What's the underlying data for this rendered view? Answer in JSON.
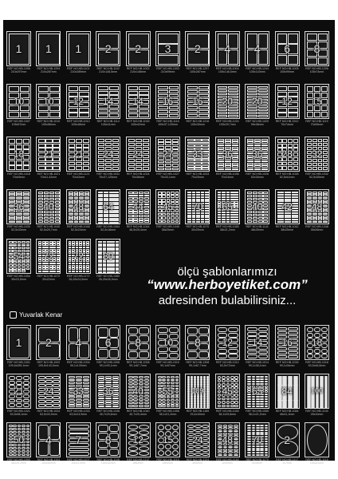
{
  "promo": {
    "line1": "ölçü şablonlarımızı",
    "line2": "“www.herboyetiket.com”",
    "line3": "adresinden bulabilirsiniz..."
  },
  "section_label": "Yuvarlak Kenar",
  "templates_square": [
    {
      "n": "1",
      "code": "REF NO:HB-1096",
      "size": "210x297mm"
    },
    {
      "n": "1",
      "code": "REF NO:HB-1294",
      "size": "210x287mm"
    },
    {
      "n": "1",
      "code": "REF NO:HB-1101",
      "size": "210x289mm"
    },
    {
      "n": "2",
      "code": "REF NO:HB-1102",
      "size": "210x148,5mm"
    },
    {
      "n": "2",
      "code": "REF NO:HB-1002",
      "size": "210x148mm"
    },
    {
      "n": "3",
      "code": "REF NO:HB-1003",
      "size": "210x99mm"
    },
    {
      "n": "2",
      "code": "REF NO:HB-1297",
      "size": "105x287mm"
    },
    {
      "n": "4",
      "code": "REF NO:HB-1004",
      "size": "105x148,5mm"
    },
    {
      "n": "4",
      "code": "REF NO:HB-1244",
      "size": "105x143mm"
    },
    {
      "n": "6",
      "code": "REF NO:HB-1005",
      "size": "105x99mm"
    },
    {
      "n": "8",
      "code": "REF NO:HB-1206",
      "size": "105x74mm"
    },
    {
      "n": "10",
      "code": "REF NO:HB-1007",
      "size": "105x57mm"
    },
    {
      "n": "10",
      "code": "REF NO:HB-1010",
      "size": "105x58mm"
    },
    {
      "n": "12",
      "code": "REF NO:HB-1012",
      "size": "105x48mm"
    },
    {
      "n": "14",
      "code": "REF NO:HB-1114",
      "size": "105x41mm"
    },
    {
      "n": "14",
      "code": "REF NO:HB-1015",
      "size": "105x42mm"
    },
    {
      "n": "16",
      "code": "REF NO:HB-1116",
      "size": "105x37,125mm"
    },
    {
      "n": "16",
      "code": "REF NO:HB-1216",
      "size": "105x35mm"
    },
    {
      "n": "20",
      "code": "REF NO:HB-1224",
      "size": "105x29,7mm"
    },
    {
      "n": "20",
      "code": "REF NO:HB-1020",
      "size": "99x38mm"
    },
    {
      "n": "12",
      "code": "REF NO:HB-1512",
      "size": "70x74mm"
    },
    {
      "n": "15",
      "code": "REF NO:HB-1119",
      "size": "70x59mm"
    },
    {
      "n": "18",
      "code": "REF NO:HB-1018",
      "size": "70x49mm"
    },
    {
      "n": "21",
      "code": "REF NO:HB-1021",
      "size": "70x41,42mm"
    },
    {
      "n": "21",
      "code": "REF NO:HB-1121",
      "size": "70x42mm"
    },
    {
      "n": "24",
      "code": "REF NO:HB-1031",
      "size": "70x37,125mm"
    },
    {
      "n": "24",
      "code": "REF NO:HB-1024",
      "size": "70x36mm"
    },
    {
      "n": "27",
      "code": "REF NO:HB-1027",
      "size": "70x33,1mm"
    },
    {
      "n": "33",
      "code": "REF NO:HB-1033",
      "size": "70x25mm"
    },
    {
      "n": "36",
      "code": "REF NO:HB-1036",
      "size": "70x24mm"
    },
    {
      "n": "36",
      "code": "REF NO:HB-1026",
      "size": "52x34mm"
    },
    {
      "n": "28",
      "code": "REF NO:HB-1028",
      "size": "52,5x41mm"
    },
    {
      "n": "32",
      "code": "REF NO:HB-1032",
      "size": "52,5x35mm"
    },
    {
      "n": "36",
      "code": "REF NO:HB-1030",
      "size": "52,5x33mm"
    },
    {
      "n": "40",
      "code": "REF NO:HB-1040",
      "size": "52,5x29,7mm"
    },
    {
      "n": "48",
      "code": "REF NO:HB-1048",
      "size": "52,5x24mm"
    },
    {
      "n": "64",
      "code": "REF NO:HB-1064",
      "size": "52,5x18mm"
    },
    {
      "n": "44",
      "code": "REF NO:HB-1044",
      "size": "48,5x25,4mm"
    },
    {
      "n": "45",
      "code": "REF NO:HB-1045",
      "size": "38x29mm"
    },
    {
      "n": "70",
      "code": "REF NO:HB-1070",
      "size": "30x25mm"
    },
    {
      "n": "65",
      "code": "REF NO:HB-1065",
      "size": "38x21,2mm"
    },
    {
      "n": "40",
      "code": "REF NO:HB-1141",
      "size": "48x25mm"
    },
    {
      "n": "42",
      "code": "REF NO:HB-1042",
      "size": "38x25mm"
    },
    {
      "n": "48",
      "code": "REF NO:HB-1348",
      "size": "35x26mm"
    },
    {
      "n": "54",
      "code": "REF NO:HB-1054",
      "size": "35x23,5mm"
    },
    {
      "n": "72",
      "code": "REF NO:HB-1072",
      "size": "30x22mm"
    },
    {
      "n": "72",
      "code": "REF NO:HB-1172",
      "size": "26,25x24,5mm"
    },
    {
      "n": "80",
      "code": "REF NO:HB-1080",
      "size": "26,25x26,9mm"
    }
  ],
  "templates_round": [
    {
      "n": "1",
      "code": "REF NO:HB-1001",
      "size": "199,6x289,1mm"
    },
    {
      "n": "2",
      "code": "REF NO:HB-1002",
      "size": "199,6x143,5mm"
    },
    {
      "n": "4",
      "code": "REF NO:HB-1004",
      "size": "99,1x139mm"
    },
    {
      "n": "6",
      "code": "REF NO:HB-1006",
      "size": "99,1x93,1mm"
    },
    {
      "n": "8",
      "code": "REF NO:HB-1008",
      "size": "99,1x67,7mm"
    },
    {
      "n": "10",
      "code": "REF NO:HB-1010",
      "size": "99,1x57mm"
    },
    {
      "n": "8",
      "code": "REF NO:HB-1308",
      "size": "99,1x67,7mm"
    },
    {
      "n": "12",
      "code": "REF NO:HB-1312",
      "size": "63,5x72mm"
    },
    {
      "n": "14",
      "code": "REF NO:HB-1014",
      "size": "99,1x38,1mm"
    },
    {
      "n": "16",
      "code": "REF NO:HB-1016",
      "size": "99,1x34mm"
    },
    {
      "n": "18",
      "code": "REF NO:HB-1018",
      "size": "63,5x46,6mm"
    },
    {
      "n": "21",
      "code": "REF NO:HB-1021",
      "size": "63,5x38,1mm"
    },
    {
      "n": "24",
      "code": "REF NO:HB-1024",
      "size": "63,5x33,9mm"
    },
    {
      "n": "33",
      "code": "REF NO:HB-1033",
      "size": "63,5x24,9mm"
    },
    {
      "n": "36",
      "code": "REF NO:HB-1036",
      "size": "45,7x29,6mm"
    },
    {
      "n": "40",
      "code": "REF NO:HB-1040",
      "size": "45,7x25,4mm"
    },
    {
      "n": "55",
      "code": "REF NO:HB-1055",
      "size": "38,1x21,2mm"
    },
    {
      "n": "189",
      "code": "REF NO:HB-1189",
      "size": "25,4x10mm"
    },
    {
      "n": "45",
      "code": "REF NO:HB-1045",
      "size": "38,1x29,6mm"
    },
    {
      "n": "65",
      "code": "REF NO:HB-1065",
      "size": "38,1x21,2mm"
    },
    {
      "n": "84",
      "code": "REF NO:HB-1084",
      "size": "46x11,1mm"
    },
    {
      "n": "100",
      "code": "REF NO:HB-1100",
      "size": "25x10mm"
    },
    {
      "n": "50",
      "code": "REF NO:HB-1050",
      "size": "46x25,2mm"
    },
    {
      "n": "4",
      "code": "REF NO:HB-1104",
      "size": "150x65mm"
    },
    {
      "n": "7",
      "code": "REF NO:HB-1107",
      "size": "150x37mm"
    },
    {
      "n": "8",
      "code": "REF NO:HB-1108",
      "size": "150x34mm"
    },
    {
      "n": "12",
      "code": "REF NO:HB-1112",
      "size": "Ø60mm"
    },
    {
      "n": "15",
      "code": "REF NO:HB-1115",
      "size": "Ø50mm"
    },
    {
      "n": "24",
      "code": "REF NO:HB-1124",
      "size": "Ø40mm"
    },
    {
      "n": "48",
      "code": "REF NO:HB-1148",
      "size": "Ø30mm"
    },
    {
      "n": "70",
      "code": "REF NO:HB-1170",
      "size": "Ø25mm"
    },
    {
      "n": "2",
      "code": "REF NO:HB-1117",
      "size": "117mm"
    },
    {
      "n": "",
      "code": "REF NO:HB-1118",
      "size": "116x41mm"
    }
  ]
}
